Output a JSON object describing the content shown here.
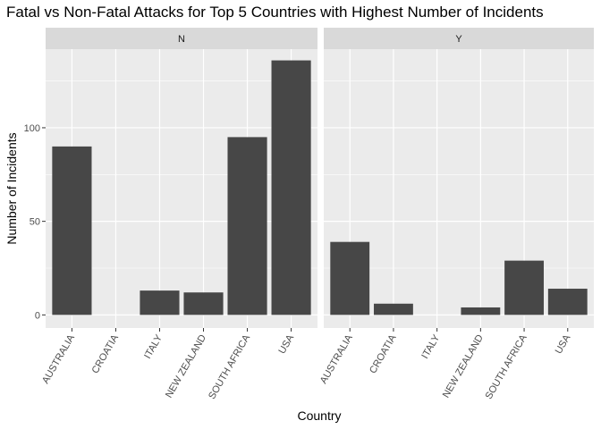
{
  "chart_data": {
    "type": "bar",
    "title": "Fatal vs Non-Fatal Attacks for Top 5 Countries with Highest Number of Incidents",
    "xlabel": "Country",
    "ylabel": "Number of Incidents",
    "categories": [
      "AUSTRALIA",
      "CROATIA",
      "ITALY",
      "NEW ZEALAND",
      "SOUTH AFRICA",
      "USA"
    ],
    "ylim": [
      -7,
      142
    ],
    "yticks": [
      0,
      50,
      100
    ],
    "grid": true,
    "bar_color": "#474747",
    "panel_background": "#ebebeb",
    "strip_background": "#d9d9d9",
    "gridline_color": "#ffffff",
    "facets": [
      {
        "label": "N",
        "values": [
          90,
          0,
          13,
          12,
          95,
          136
        ]
      },
      {
        "label": "Y",
        "values": [
          39,
          6,
          0,
          4,
          29,
          14
        ]
      }
    ]
  }
}
